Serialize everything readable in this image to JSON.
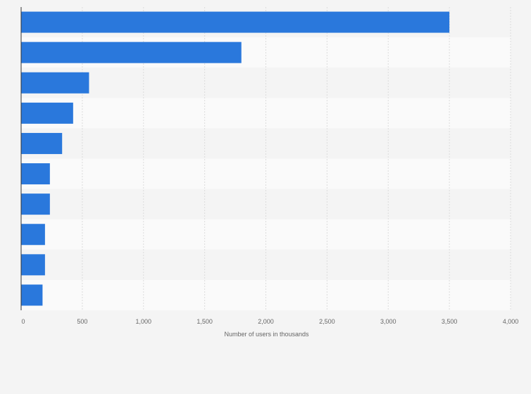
{
  "chart_data": {
    "type": "bar",
    "orientation": "horizontal",
    "categories": [
      "",
      "",
      "",
      "",
      "",
      "",
      "",
      "",
      "",
      ""
    ],
    "values": [
      3500,
      1800,
      555,
      425,
      335,
      235,
      235,
      195,
      195,
      175
    ],
    "xlabel": "Number of users in thousands",
    "xlim": [
      0,
      4000
    ],
    "xticks": [
      0,
      500,
      1000,
      1500,
      2000,
      2500,
      3000,
      3500,
      4000
    ],
    "xtick_labels": [
      "0",
      "500",
      "1,000",
      "1,500",
      "2,000",
      "2,500",
      "3,000",
      "3,500",
      "4,000"
    ],
    "grid": true,
    "legend": "none",
    "colors": {
      "bar": "#2a78dc",
      "band_even": "#f4f4f4",
      "band_odd": "#fafafa",
      "grid": "#dcdcdc",
      "axis": "#333333",
      "text": "#666666",
      "page": "#f4f4f4"
    }
  }
}
